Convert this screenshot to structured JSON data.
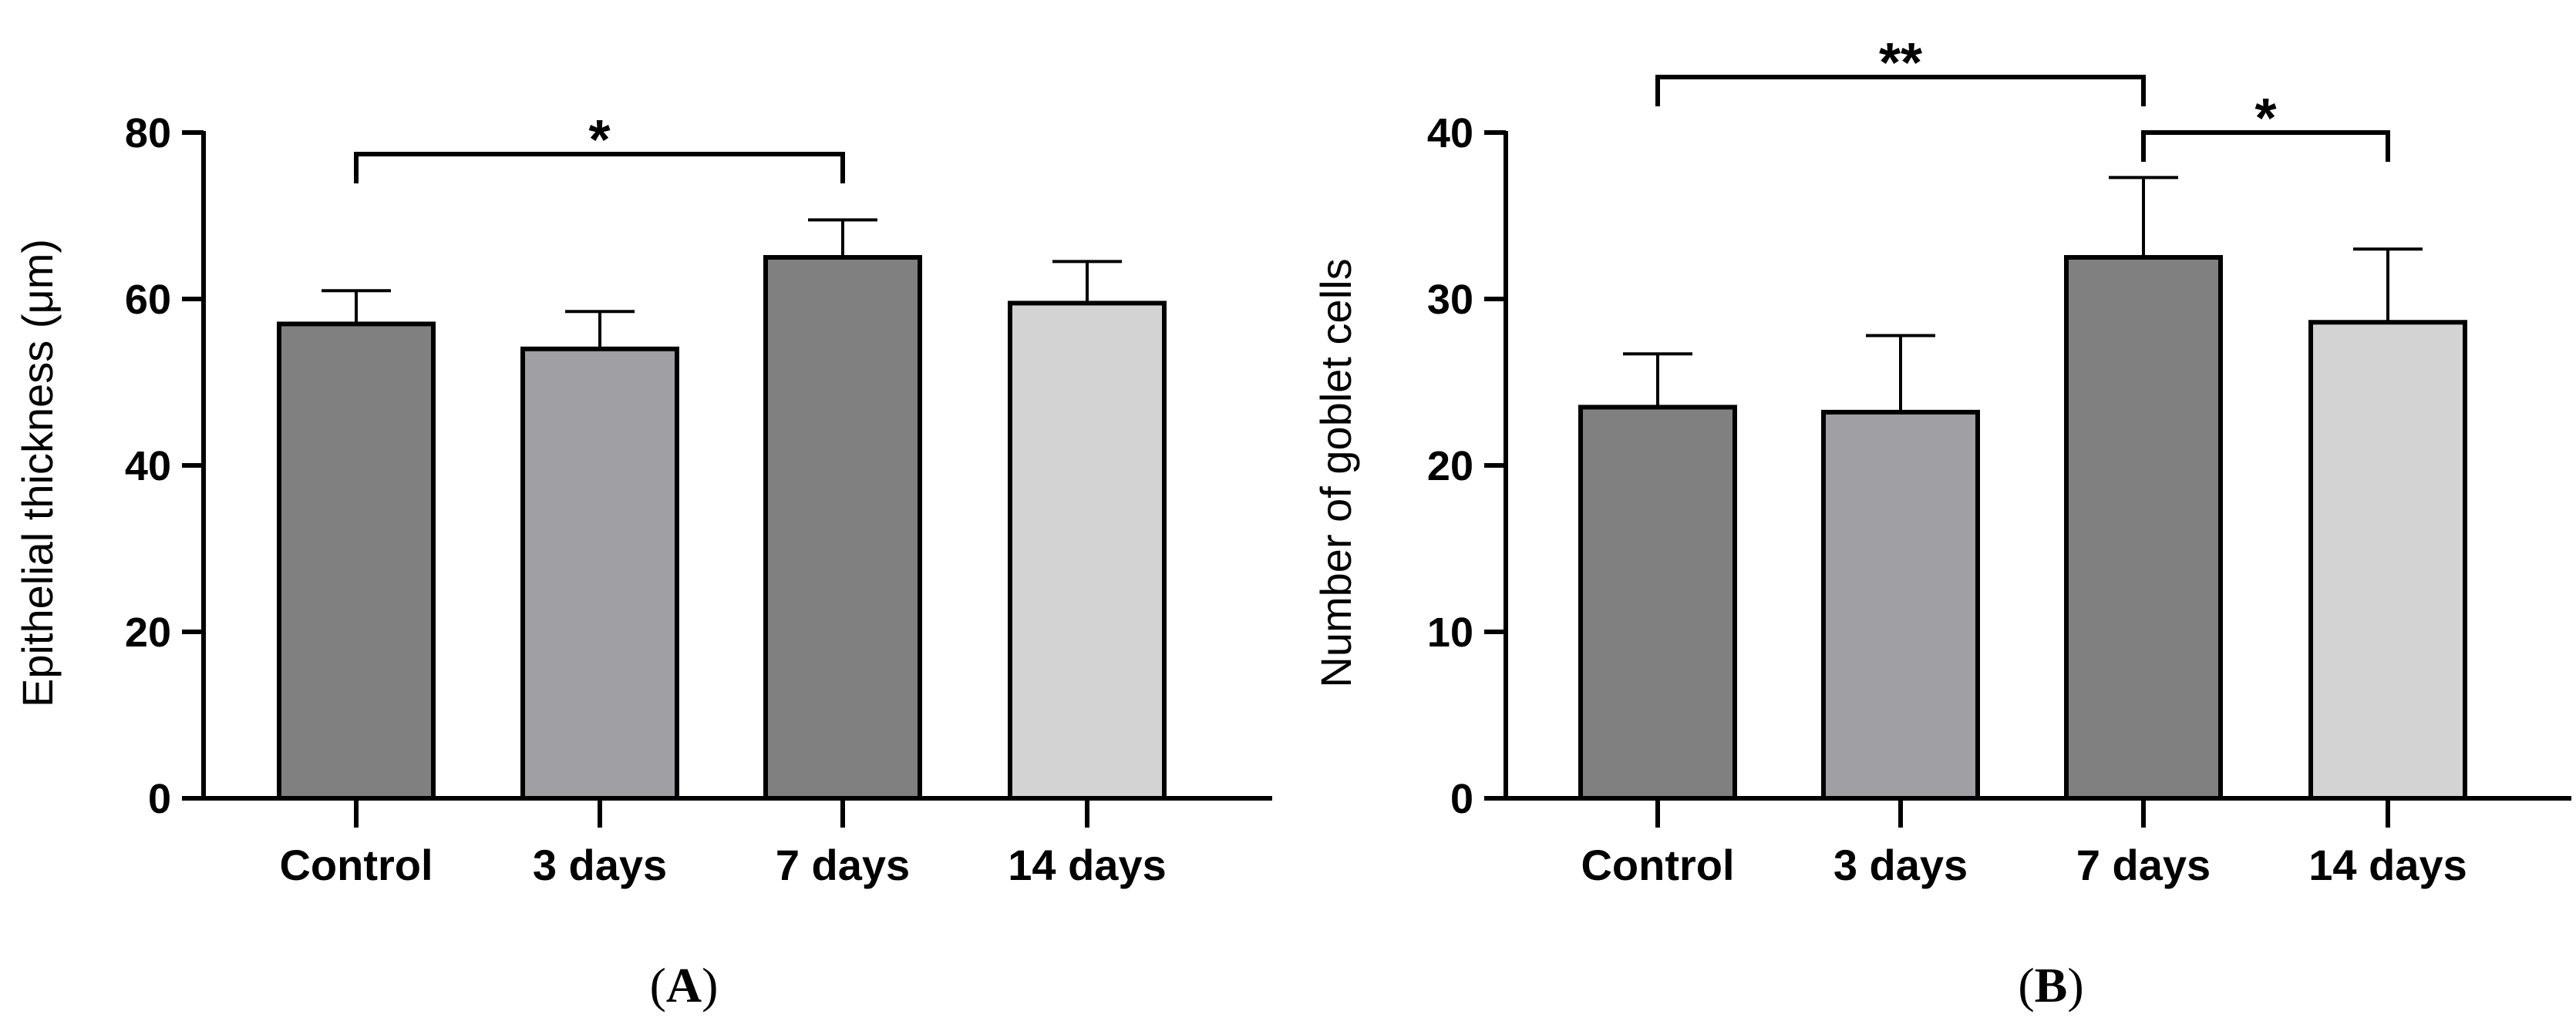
{
  "chart_data": [
    {
      "type": "bar",
      "panel": "A",
      "ylabel": "Epithelial thickness (μm)",
      "xlabel": "",
      "categories": [
        "Control",
        "3 days",
        "7 days",
        "14 days"
      ],
      "values": [
        57,
        54,
        65,
        59.5
      ],
      "errors": [
        4,
        4.5,
        4.5,
        5
      ],
      "colors": [
        "#808080",
        "#a0a0a4",
        "#808080",
        "#d3d3d3"
      ],
      "ylim": [
        0,
        80
      ],
      "yticks": [
        "0",
        "20",
        "40",
        "60",
        "80"
      ],
      "significance": [
        {
          "from": 0,
          "to": 2,
          "label": "*"
        }
      ]
    },
    {
      "type": "bar",
      "panel": "B",
      "ylabel": "Number of goblet cells",
      "xlabel": "",
      "categories": [
        "Control",
        "3 days",
        "7 days",
        "14 days"
      ],
      "values": [
        23.5,
        23.2,
        32.5,
        28.6
      ],
      "errors": [
        3.2,
        4.6,
        4.8,
        4.4
      ],
      "colors": [
        "#808080",
        "#a0a0a4",
        "#808080",
        "#d3d3d3"
      ],
      "ylim": [
        0,
        40
      ],
      "yticks": [
        "0",
        "10",
        "20",
        "30",
        "40"
      ],
      "significance": [
        {
          "from": 0,
          "to": 2,
          "label": "**"
        },
        {
          "from": 2,
          "to": 3,
          "label": "*"
        }
      ]
    }
  ],
  "panel_labels": {
    "A": {
      "open": "(",
      "letter": "A",
      "close": ")"
    },
    "B": {
      "open": "(",
      "letter": "B",
      "close": ")"
    }
  }
}
